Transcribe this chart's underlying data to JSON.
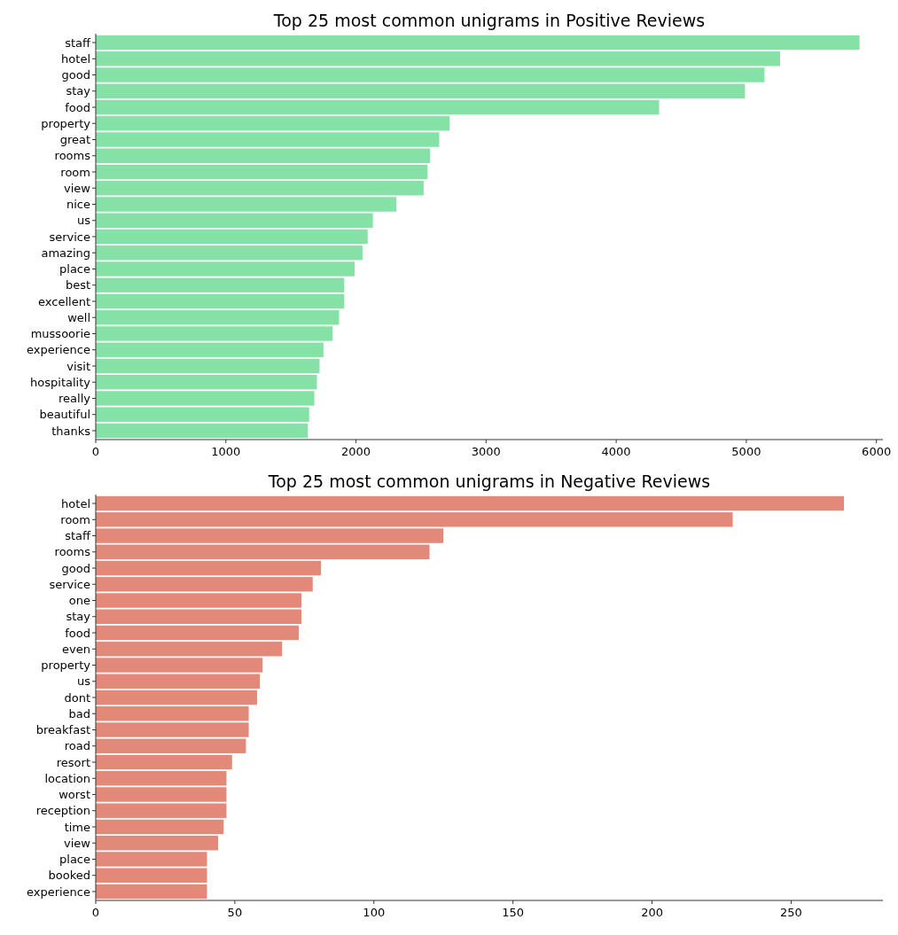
{
  "chart_data": [
    {
      "type": "bar",
      "orientation": "horizontal",
      "title": "Top 25 most common unigrams in Positive Reviews",
      "categories": [
        "staff",
        "hotel",
        "good",
        "stay",
        "food",
        "property",
        "great",
        "rooms",
        "room",
        "view",
        "nice",
        "us",
        "service",
        "amazing",
        "place",
        "best",
        "excellent",
        "well",
        "mussoorie",
        "experience",
        "visit",
        "hospitality",
        "really",
        "beautiful",
        "thanks"
      ],
      "values": [
        5870,
        5260,
        5140,
        4990,
        4330,
        2720,
        2640,
        2570,
        2550,
        2520,
        2310,
        2130,
        2090,
        2050,
        1990,
        1910,
        1910,
        1870,
        1820,
        1750,
        1720,
        1700,
        1680,
        1640,
        1630
      ],
      "color": "#86e1a6",
      "xlim": [
        0,
        6050
      ],
      "xticks": [
        0,
        1000,
        2000,
        3000,
        4000,
        5000,
        6000
      ]
    },
    {
      "type": "bar",
      "orientation": "horizontal",
      "title": "Top 25 most common unigrams in Negative Reviews",
      "categories": [
        "hotel",
        "room",
        "staff",
        "rooms",
        "good",
        "service",
        "one",
        "stay",
        "food",
        "even",
        "property",
        "us",
        "dont",
        "bad",
        "breakfast",
        "road",
        "resort",
        "location",
        "worst",
        "reception",
        "time",
        "view",
        "place",
        "booked",
        "experience"
      ],
      "values": [
        269,
        229,
        125,
        120,
        81,
        78,
        74,
        74,
        73,
        67,
        60,
        59,
        58,
        55,
        55,
        54,
        49,
        47,
        47,
        47,
        46,
        44,
        40,
        40,
        40
      ],
      "color": "#e2897a",
      "xlim": [
        0,
        283
      ],
      "xticks": [
        0,
        50,
        100,
        150,
        200,
        250
      ]
    }
  ]
}
